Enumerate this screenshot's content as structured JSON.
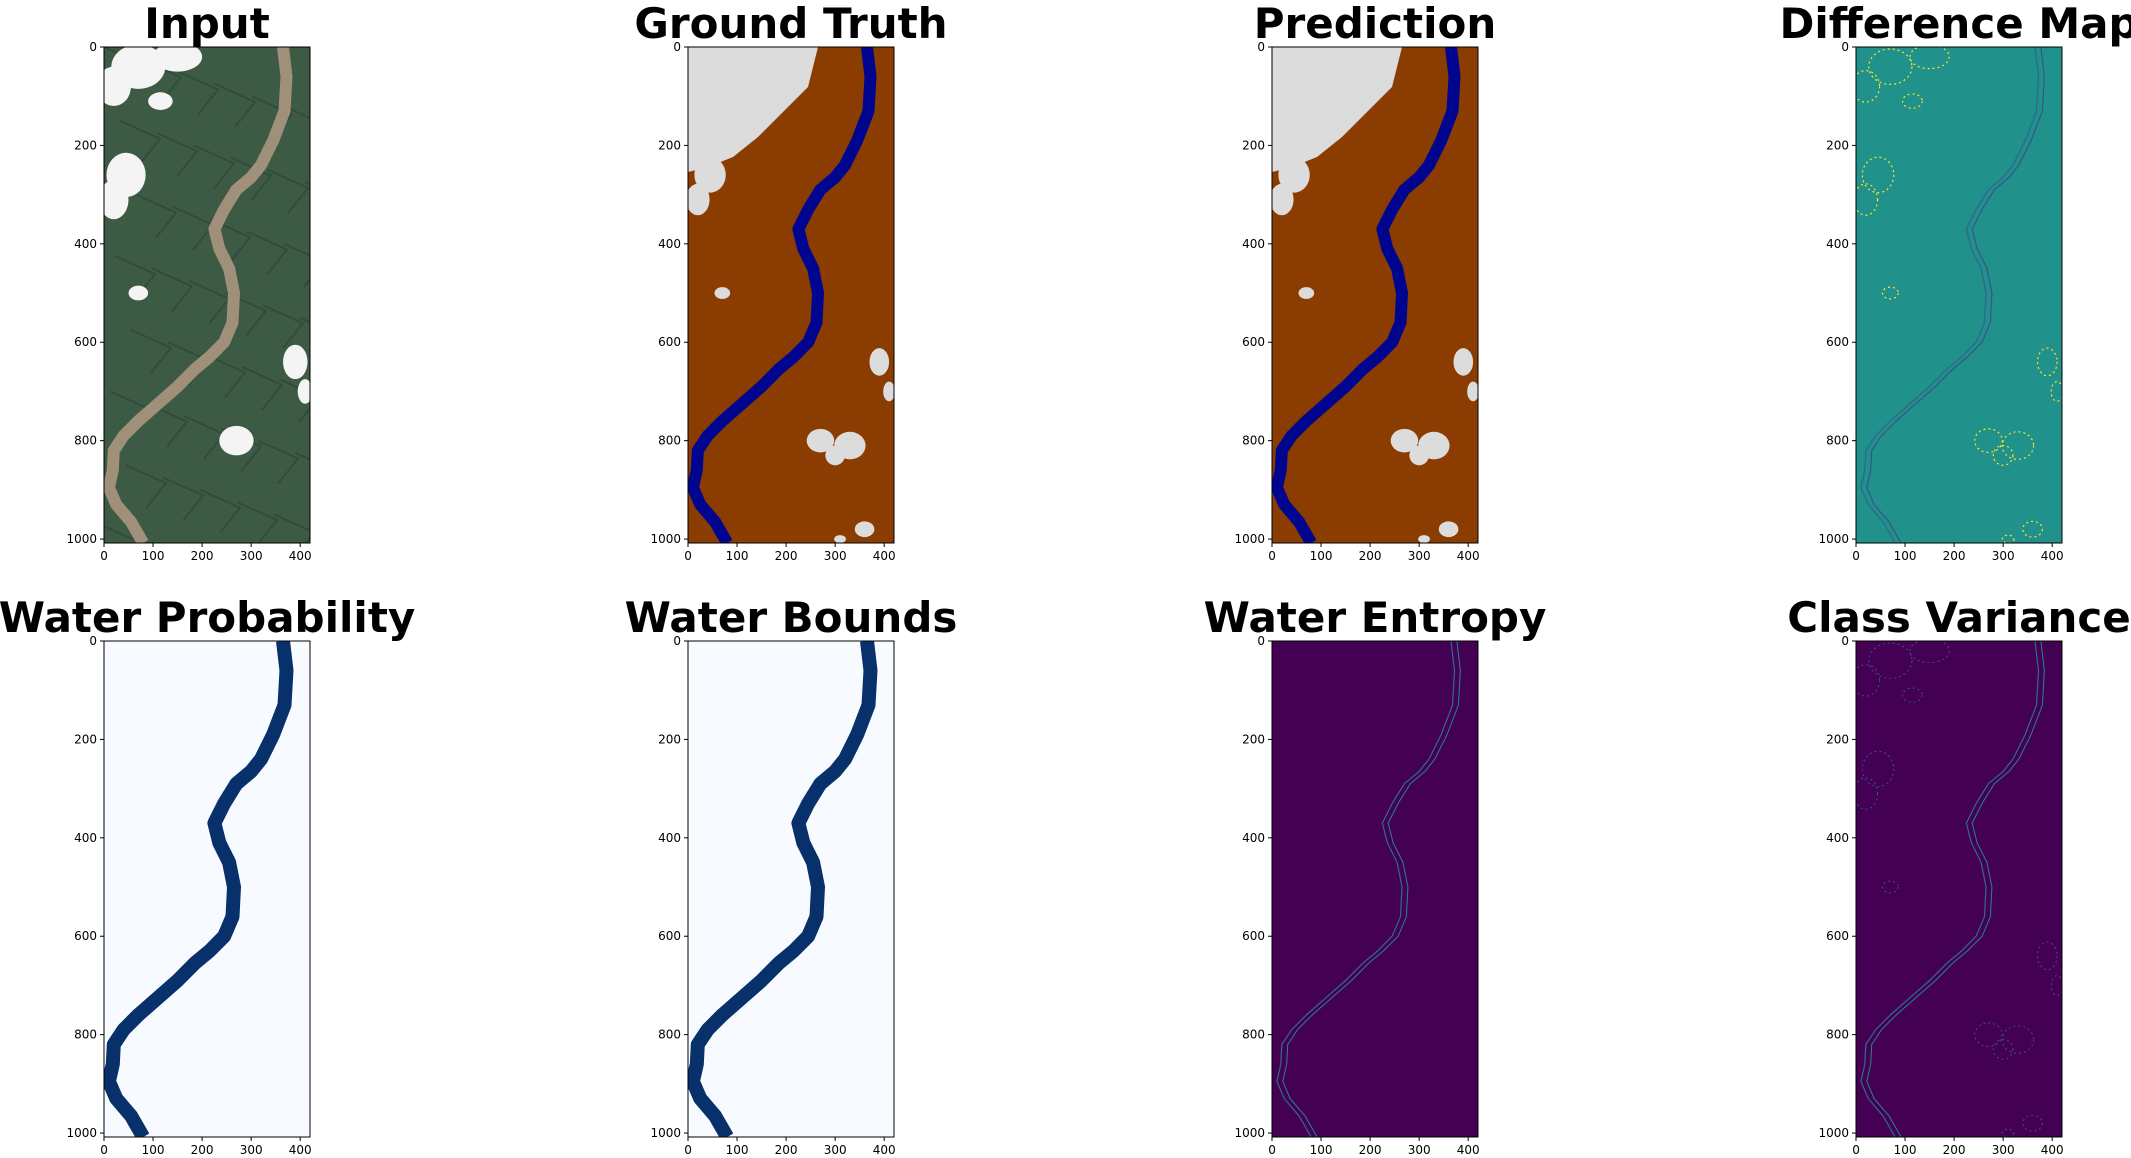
{
  "colors": {
    "land": "#8b3c00",
    "cloud": "#dcdcdc",
    "water_class": "#00058f",
    "viridis_bg": "#21918c",
    "viridis_low": "#440154",
    "viridis_high": "#fde725",
    "blues_bg": "#f7fbff",
    "blues_water": "#08306b",
    "sat_forest": "#3d5a45",
    "sat_river": "#a0907a",
    "sat_cloud": "#f4f4f4"
  },
  "chart_data": [
    {
      "type": "heatmap",
      "id": "input",
      "title": "Input",
      "xlim": [
        0,
        420
      ],
      "ylim": [
        1008,
        0
      ],
      "xticks": [
        0,
        100,
        200,
        300,
        400
      ],
      "yticks": [
        0,
        200,
        400,
        600,
        800,
        1000
      ],
      "colormap": "rgb"
    },
    {
      "type": "heatmap",
      "id": "ground_truth",
      "title": "Ground Truth",
      "xlim": [
        0,
        420
      ],
      "ylim": [
        1008,
        0
      ],
      "xticks": [
        0,
        100,
        200,
        300,
        400
      ],
      "yticks": [
        0,
        200,
        400,
        600,
        800,
        1000
      ],
      "colormap": "classes"
    },
    {
      "type": "heatmap",
      "id": "prediction",
      "title": "Prediction",
      "xlim": [
        0,
        420
      ],
      "ylim": [
        1008,
        0
      ],
      "xticks": [
        0,
        100,
        200,
        300,
        400
      ],
      "yticks": [
        0,
        200,
        400,
        600,
        800,
        1000
      ],
      "colormap": "classes"
    },
    {
      "type": "heatmap",
      "id": "difference_map",
      "title": "Difference Map",
      "xlim": [
        0,
        420
      ],
      "ylim": [
        1008,
        0
      ],
      "xticks": [
        0,
        100,
        200,
        300,
        400
      ],
      "yticks": [
        0,
        200,
        400,
        600,
        800,
        1000
      ],
      "colormap": "viridis"
    },
    {
      "type": "heatmap",
      "id": "water_probability",
      "title": "Water Probability",
      "xlim": [
        0,
        420
      ],
      "ylim": [
        1008,
        0
      ],
      "xticks": [
        0,
        100,
        200,
        300,
        400
      ],
      "yticks": [
        0,
        200,
        400,
        600,
        800,
        1000
      ],
      "colormap": "Blues"
    },
    {
      "type": "heatmap",
      "id": "water_bounds",
      "title": "Water Bounds",
      "xlim": [
        0,
        420
      ],
      "ylim": [
        1008,
        0
      ],
      "xticks": [
        0,
        100,
        200,
        300,
        400
      ],
      "yticks": [
        0,
        200,
        400,
        600,
        800,
        1000
      ],
      "colormap": "Blues"
    },
    {
      "type": "heatmap",
      "id": "water_entropy",
      "title": "Water Entropy",
      "xlim": [
        0,
        420
      ],
      "ylim": [
        1008,
        0
      ],
      "xticks": [
        0,
        100,
        200,
        300,
        400
      ],
      "yticks": [
        0,
        200,
        400,
        600,
        800,
        1000
      ],
      "colormap": "viridis"
    },
    {
      "type": "heatmap",
      "id": "class_variance",
      "title": "Class Variance",
      "xlim": [
        0,
        420
      ],
      "ylim": [
        1008,
        0
      ],
      "xticks": [
        0,
        100,
        200,
        300,
        400
      ],
      "yticks": [
        0,
        200,
        400,
        600,
        800,
        1000
      ],
      "colormap": "viridis"
    }
  ],
  "river_path": [
    [
      365,
      0
    ],
    [
      372,
      60
    ],
    [
      368,
      130
    ],
    [
      345,
      190
    ],
    [
      320,
      240
    ],
    [
      300,
      265
    ],
    [
      270,
      290
    ],
    [
      245,
      330
    ],
    [
      225,
      370
    ],
    [
      235,
      410
    ],
    [
      255,
      450
    ],
    [
      265,
      500
    ],
    [
      262,
      560
    ],
    [
      245,
      600
    ],
    [
      215,
      630
    ],
    [
      185,
      655
    ],
    [
      150,
      690
    ],
    [
      110,
      725
    ],
    [
      70,
      760
    ],
    [
      40,
      790
    ],
    [
      20,
      820
    ],
    [
      18,
      860
    ],
    [
      10,
      895
    ],
    [
      25,
      930
    ],
    [
      55,
      965
    ],
    [
      80,
      1008
    ]
  ],
  "cloud_blobs": [
    [
      70,
      40,
      55,
      45
    ],
    [
      20,
      80,
      35,
      40
    ],
    [
      150,
      20,
      50,
      30
    ],
    [
      115,
      110,
      25,
      18
    ],
    [
      45,
      260,
      40,
      45
    ],
    [
      20,
      310,
      30,
      40
    ],
    [
      70,
      500,
      20,
      15
    ],
    [
      390,
      640,
      25,
      35
    ],
    [
      410,
      700,
      15,
      25
    ],
    [
      270,
      800,
      35,
      30
    ],
    [
      330,
      810,
      40,
      35
    ],
    [
      300,
      830,
      25,
      25
    ],
    [
      360,
      980,
      25,
      20
    ],
    [
      310,
      1000,
      15,
      10
    ]
  ]
}
